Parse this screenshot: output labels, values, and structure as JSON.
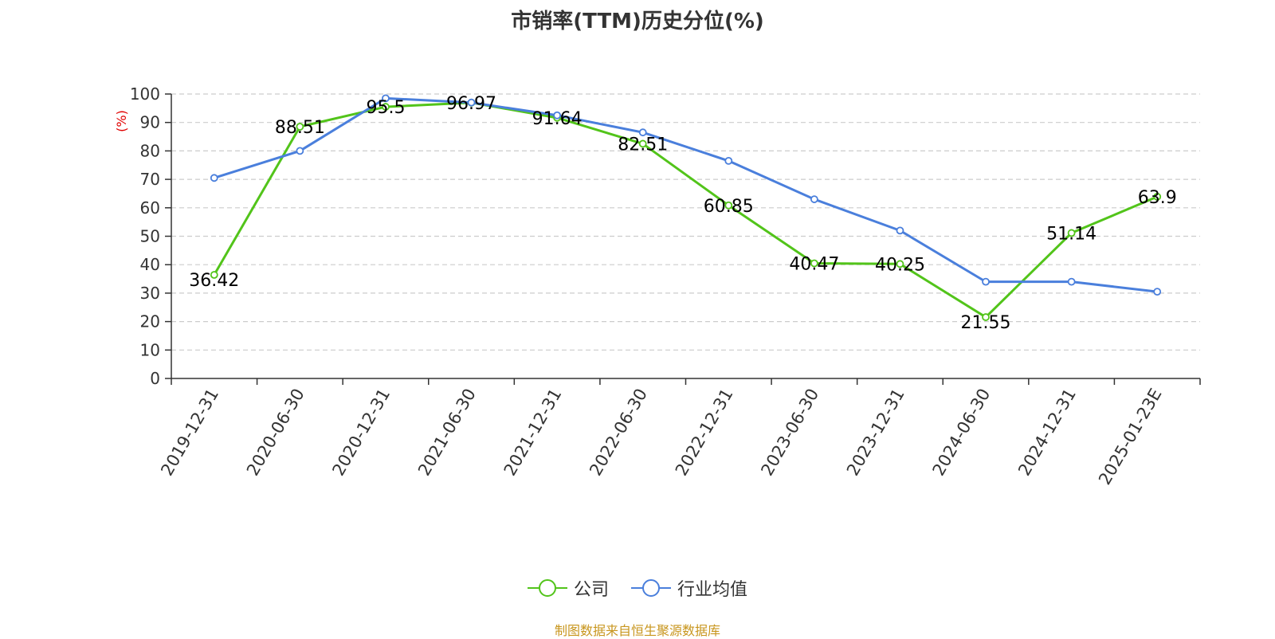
{
  "chart_data": {
    "type": "line",
    "title": "市销率(TTM)历史分位(%)",
    "ylabel": "(%)",
    "xlabel": "",
    "ylim": [
      0,
      100
    ],
    "yticks": [
      0,
      10,
      20,
      30,
      40,
      50,
      60,
      70,
      80,
      90,
      100
    ],
    "categories": [
      "2019-12-31",
      "2020-06-30",
      "2020-12-31",
      "2021-06-30",
      "2021-12-31",
      "2022-06-30",
      "2022-12-31",
      "2023-06-30",
      "2023-12-31",
      "2024-06-30",
      "2024-12-31",
      "2025-01-23E"
    ],
    "grid": true,
    "legend_position": "bottom",
    "series": [
      {
        "name": "公司",
        "color": "#52c41a",
        "values": [
          36.42,
          88.51,
          95.5,
          96.97,
          91.64,
          82.51,
          60.85,
          40.47,
          40.25,
          21.55,
          51.14,
          63.9
        ],
        "labels": [
          "36.42",
          "88.51",
          "95.5",
          "96.97",
          "91.64",
          "82.51",
          "60.85",
          "40.47",
          "40.25",
          "21.55",
          "51.14",
          "63.9"
        ]
      },
      {
        "name": "行业均值",
        "color": "#4a7fdc",
        "values": [
          70.5,
          80.0,
          98.5,
          97.0,
          92.5,
          86.5,
          76.5,
          63.0,
          52.0,
          34.0,
          34.0,
          30.5
        ]
      }
    ],
    "source": "制图数据来自恒生聚源数据库"
  }
}
